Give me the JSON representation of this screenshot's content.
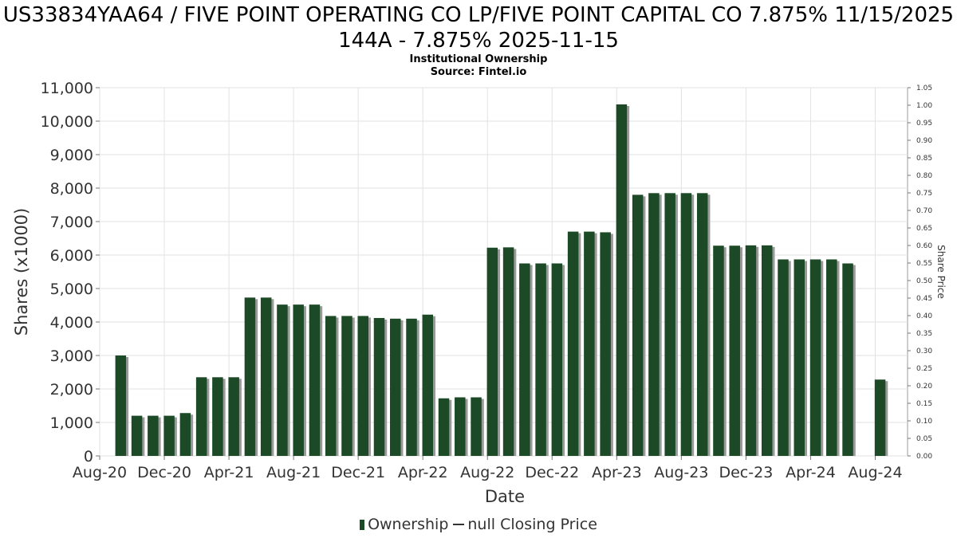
{
  "chart_data": {
    "type": "bar",
    "title": "US33834YAA64 / FIVE POINT OPERATING CO LP/FIVE POINT CAPITAL CO 7.875% 11/15/2025 144A - 7.875% 2025-11-15",
    "subtitle_lines": [
      "Institutional Ownership",
      "Source: Fintel.io"
    ],
    "xlabel": "Date",
    "ylabel": "Shares (x1000)",
    "y2label": "Share Price",
    "ylim": [
      0,
      11000
    ],
    "y2lim": [
      0,
      1.05
    ],
    "y_ticks": [
      "0",
      "1,000",
      "2,000",
      "3,000",
      "4,000",
      "5,000",
      "6,000",
      "7,000",
      "8,000",
      "9,000",
      "10,000",
      "11,000"
    ],
    "y2_ticks": [
      "0.00",
      "0.05",
      "0.10",
      "0.15",
      "0.20",
      "0.25",
      "0.30",
      "0.35",
      "0.40",
      "0.45",
      "0.50",
      "0.55",
      "0.60",
      "0.65",
      "0.70",
      "0.75",
      "0.80",
      "0.85",
      "0.90",
      "0.95",
      "1.00",
      "1.05"
    ],
    "x_ticks": [
      "Aug-20",
      "Dec-20",
      "Apr-21",
      "Aug-21",
      "Dec-21",
      "Apr-22",
      "Aug-22",
      "Dec-22",
      "Apr-23",
      "Aug-23",
      "Dec-23",
      "Apr-24",
      "Aug-24"
    ],
    "x_month_range": [
      0,
      50
    ],
    "grid": true,
    "series": [
      {
        "name": "Ownership",
        "color": "#1c4a27",
        "x_months": [
          1.3,
          2.3,
          3.3,
          4.3,
          5.3,
          6.3,
          7.3,
          8.3,
          9.3,
          10.3,
          11.3,
          12.3,
          13.3,
          14.3,
          15.3,
          16.3,
          17.3,
          18.3,
          19.3,
          20.3,
          21.3,
          22.3,
          23.3,
          24.3,
          25.3,
          26.3,
          27.3,
          28.3,
          29.3,
          30.3,
          31.3,
          32.3,
          33.3,
          34.3,
          35.3,
          36.3,
          37.3,
          38.3,
          39.3,
          40.3,
          41.3,
          42.3,
          43.3,
          44.3,
          45.3,
          46.3,
          47.3,
          48.3
        ],
        "values": [
          3000,
          1200,
          1200,
          1200,
          1280,
          2350,
          2350,
          2350,
          4730,
          4730,
          4520,
          4520,
          4520,
          4180,
          4180,
          4180,
          4120,
          4100,
          4100,
          4220,
          1720,
          1750,
          1750,
          6220,
          6230,
          5750,
          5750,
          5750,
          6700,
          6700,
          6680,
          10500,
          7800,
          7850,
          7850,
          7850,
          7850,
          6280,
          6280,
          6290,
          6290,
          5870,
          5870,
          5870,
          5870,
          5750,
          0,
          2280
        ]
      }
    ],
    "legend": {
      "position": "bottom",
      "ownership_label": "Ownership",
      "price_label": "null Closing Price"
    }
  }
}
